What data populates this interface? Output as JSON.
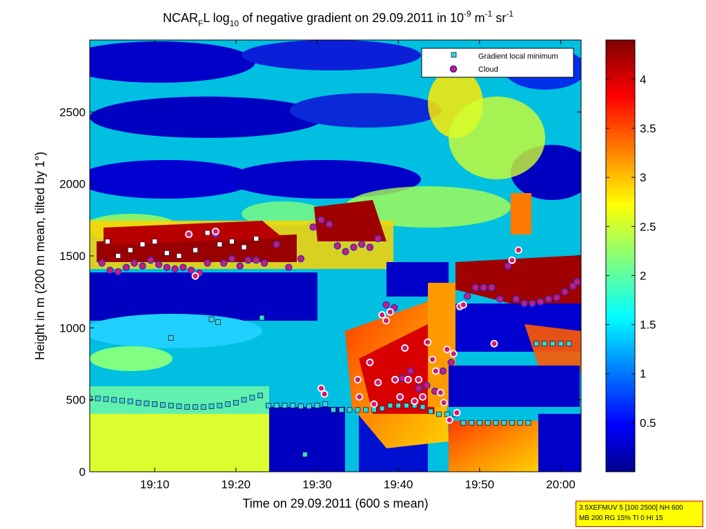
{
  "chart_data": {
    "type": "heatmap",
    "title": {
      "p1": "NCAR",
      "sub1": "F",
      "p2": "L log",
      "sub2": "10",
      "p3": " of negative gradient on 29.09.2011 in 10",
      "sup1": "-9",
      "p4": " m",
      "sup2": "-1",
      "p5": " sr",
      "sup3": "-1"
    },
    "xlabel": "Time on 29.09.2011 (600 s mean)",
    "ylabel": "Height in m (200 m mean, tilted by 1°)",
    "x_ticks": [
      "19:10",
      "19:20",
      "19:30",
      "19:40",
      "19:50",
      "20:00"
    ],
    "x_tick_minutes": [
      10,
      20,
      30,
      40,
      50,
      60
    ],
    "xlim_minutes_after_1900": [
      2,
      62.5
    ],
    "y_ticks": [
      0,
      500,
      1000,
      1500,
      2000,
      2500
    ],
    "ylim": [
      0,
      3000
    ],
    "colorbar": {
      "ticks": [
        "0.5",
        "1",
        "1.5",
        "2",
        "2.5",
        "3",
        "3.5",
        "4"
      ],
      "tick_values": [
        0.5,
        1,
        1.5,
        2,
        2.5,
        3,
        3.5,
        4
      ],
      "range": [
        0,
        4.4
      ],
      "colormap": "jet"
    },
    "legend": {
      "position": "top-right",
      "entries": [
        {
          "label": "Gradient local minimum",
          "marker": "square",
          "color": "#35d6d6"
        },
        {
          "label": "Cloud",
          "marker": "circle",
          "color": "#d6196e"
        }
      ]
    },
    "series": [
      {
        "name": "Gradient local minimum",
        "x_minutes": [
          2.0,
          3.0,
          4.0,
          5.0,
          6.0,
          7.0,
          8.0,
          9.0,
          10.0,
          11.0,
          12.0,
          13.0,
          14.0,
          15.0,
          16.0,
          17.0,
          18.0,
          19.0,
          20.0,
          21.0,
          22.0,
          23.0,
          24.0,
          25.0,
          26.0,
          27.0,
          28.0,
          29.0,
          30.0,
          31.0,
          32.0,
          33.0,
          34.0,
          35.0,
          36.0,
          37.0,
          38.0,
          39.0,
          40.0,
          41.0,
          42.0,
          43.0,
          44.0,
          45.0,
          46.0,
          47.0,
          48.0,
          49.0,
          50.0,
          51.0,
          52.0,
          53.0,
          54.0,
          55.0,
          56.0,
          57.0,
          58.0,
          59.0,
          60.0,
          61.0
        ],
        "height_m": [
          510,
          510,
          505,
          500,
          495,
          490,
          480,
          475,
          470,
          465,
          460,
          455,
          450,
          450,
          450,
          455,
          460,
          470,
          480,
          500,
          515,
          530,
          460,
          460,
          460,
          460,
          455,
          455,
          460,
          470,
          430,
          430,
          430,
          430,
          430,
          430,
          440,
          460,
          460,
          460,
          460,
          450,
          420,
          400,
          400,
          400,
          340,
          340,
          340,
          340,
          340,
          340,
          340,
          340,
          340,
          890,
          890,
          890,
          890,
          890
        ],
        "extra_points": [
          {
            "x": 4.2,
            "y": 1600
          },
          {
            "x": 5.5,
            "y": 1500
          },
          {
            "x": 7.0,
            "y": 1540
          },
          {
            "x": 8.5,
            "y": 1580
          },
          {
            "x": 10.0,
            "y": 1600
          },
          {
            "x": 11.5,
            "y": 1520
          },
          {
            "x": 13.0,
            "y": 1500
          },
          {
            "x": 15.0,
            "y": 1540
          },
          {
            "x": 16.5,
            "y": 1660
          },
          {
            "x": 18.0,
            "y": 1580
          },
          {
            "x": 19.5,
            "y": 1600
          },
          {
            "x": 21.0,
            "y": 1560
          },
          {
            "x": 22.5,
            "y": 1620
          },
          {
            "x": 17.0,
            "y": 1060
          },
          {
            "x": 17.8,
            "y": 1040
          },
          {
            "x": 12.0,
            "y": 930
          },
          {
            "x": 23.2,
            "y": 1070
          },
          {
            "x": 28.5,
            "y": 120
          }
        ]
      },
      {
        "name": "Cloud",
        "x_minutes": [
          3.5,
          4.5,
          5.5,
          6.5,
          7.5,
          8.5,
          9.5,
          10.5,
          11.5,
          12.5,
          13.5,
          14.5,
          15.5,
          16.5,
          17.5,
          18.5,
          19.5,
          20.5,
          21.5,
          22.5,
          23.5,
          25.0,
          26.5,
          28.0,
          29.5,
          30.5,
          31.5,
          32.5,
          33.5,
          34.5,
          35.5,
          36.5,
          37.5,
          38.5,
          39.5,
          40.5,
          41.5,
          42.5,
          43.5,
          44.5,
          45.5,
          46.5,
          47.5,
          48.5,
          49.5,
          50.5,
          51.5,
          52.5,
          53.5,
          54.5,
          55.5,
          56.5,
          57.5,
          58.5,
          59.5,
          60.5,
          61.5,
          62.0
        ],
        "height_m": [
          1450,
          1400,
          1390,
          1420,
          1450,
          1430,
          1470,
          1440,
          1420,
          1410,
          1420,
          1400,
          1380,
          1450,
          1650,
          1450,
          1480,
          1430,
          1470,
          1470,
          1450,
          1580,
          1420,
          1480,
          1700,
          1750,
          1720,
          1570,
          1530,
          1560,
          1580,
          1560,
          1620,
          1160,
          1140,
          650,
          700,
          580,
          600,
          560,
          700,
          760,
          1140,
          1220,
          1280,
          1280,
          1280,
          1200,
          1430,
          1200,
          1170,
          1170,
          1180,
          1200,
          1210,
          1250,
          1290,
          1320
        ],
        "extra_points": [
          {
            "x": 14.2,
            "y": 1650
          },
          {
            "x": 15.0,
            "y": 1360
          },
          {
            "x": 17.5,
            "y": 1670
          },
          {
            "x": 30.5,
            "y": 580
          },
          {
            "x": 30.9,
            "y": 540
          },
          {
            "x": 35.0,
            "y": 640
          },
          {
            "x": 35.2,
            "y": 520
          },
          {
            "x": 36.5,
            "y": 760
          },
          {
            "x": 37.0,
            "y": 470
          },
          {
            "x": 37.5,
            "y": 620
          },
          {
            "x": 38.0,
            "y": 1090
          },
          {
            "x": 38.5,
            "y": 1050
          },
          {
            "x": 39.0,
            "y": 1110
          },
          {
            "x": 39.6,
            "y": 640
          },
          {
            "x": 40.2,
            "y": 520
          },
          {
            "x": 40.8,
            "y": 860
          },
          {
            "x": 41.2,
            "y": 640
          },
          {
            "x": 42.0,
            "y": 490
          },
          {
            "x": 42.5,
            "y": 640
          },
          {
            "x": 43.0,
            "y": 520
          },
          {
            "x": 43.6,
            "y": 900
          },
          {
            "x": 44.2,
            "y": 780
          },
          {
            "x": 44.6,
            "y": 700
          },
          {
            "x": 45.2,
            "y": 550
          },
          {
            "x": 45.6,
            "y": 480
          },
          {
            "x": 46.0,
            "y": 850
          },
          {
            "x": 46.3,
            "y": 360
          },
          {
            "x": 46.8,
            "y": 820
          },
          {
            "x": 47.2,
            "y": 410
          },
          {
            "x": 47.6,
            "y": 1150
          },
          {
            "x": 51.8,
            "y": 890
          },
          {
            "x": 54.0,
            "y": 1470
          },
          {
            "x": 54.8,
            "y": 1540
          },
          {
            "x": 48.0,
            "y": 1160
          }
        ]
      }
    ]
  },
  "info_box": {
    "line1": "3.5XEFMUV 5 [100 2500] NH 600",
    "line2": "MB 200 RG 15% TI 0 HI 15"
  }
}
